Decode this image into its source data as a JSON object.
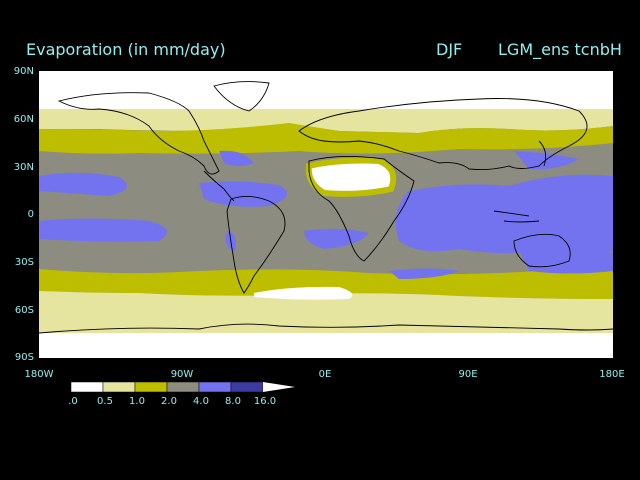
{
  "titles": {
    "left": "Evaporation (in mm/day)",
    "season": "DJF",
    "run": "LGM_ens tcnbH"
  },
  "lat_labels": [
    "90N",
    "60N",
    "30N",
    "0",
    "30S",
    "60S",
    "90S"
  ],
  "lon_labels": [
    "180W",
    "90W",
    "0E",
    "90E",
    "180E"
  ],
  "colorbar": {
    "ticks": [
      ".0",
      "0.5",
      "1.0",
      "2.0",
      "4.0",
      "8.0",
      "16.0"
    ],
    "colors": [
      "#ffffff",
      "#e5e5a0",
      "#bebe00",
      "#8c8c80",
      "#7373f0",
      "#3c3ca0"
    ]
  },
  "colors": {
    "text": "#8ff0f0",
    "coast": "#000000"
  }
}
